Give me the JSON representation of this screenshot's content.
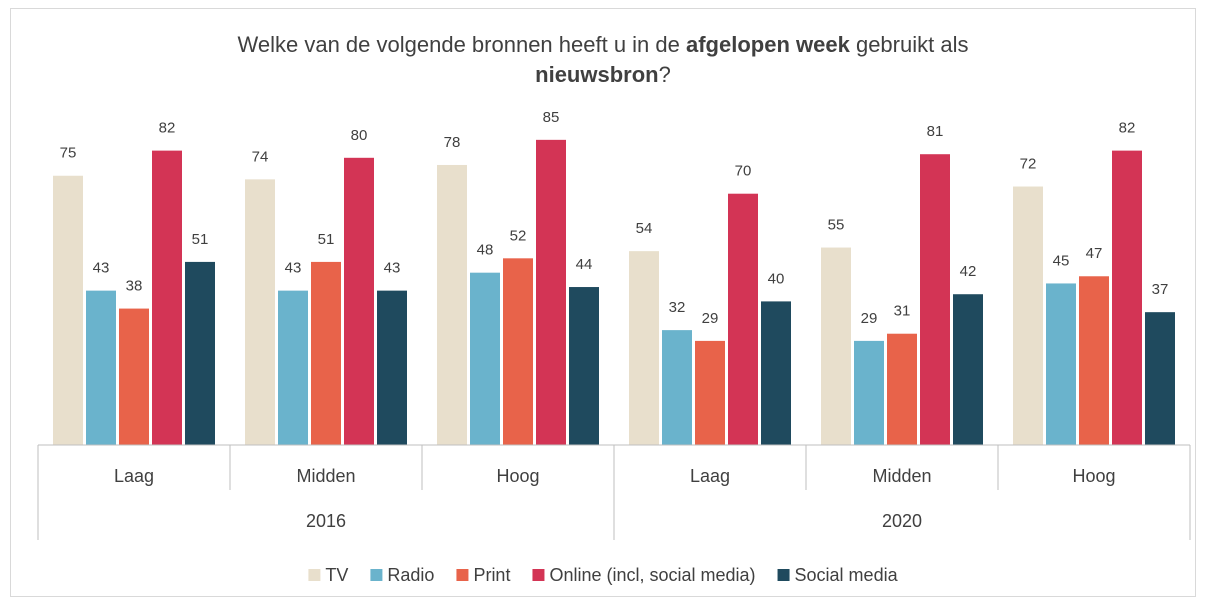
{
  "chart_data": {
    "type": "bar",
    "title": [
      "Welke van de volgende bronnen heeft u in de ",
      "afgelopen week",
      " gebruikt als ",
      "nieuwsbron",
      "?"
    ],
    "categories": [
      "Laag",
      "Midden",
      "Hoog",
      "Laag",
      "Midden",
      "Hoog"
    ],
    "category_groups": [
      "2016",
      "2020"
    ],
    "ylim": [
      0,
      100
    ],
    "series": [
      {
        "name": "TV",
        "color": "#e8dfcc",
        "values": [
          75,
          74,
          78,
          54,
          55,
          72
        ]
      },
      {
        "name": "Radio",
        "color": "#6ab3cc",
        "values": [
          43,
          43,
          48,
          32,
          29,
          45
        ]
      },
      {
        "name": "Print",
        "color": "#e8634a",
        "values": [
          38,
          51,
          52,
          29,
          31,
          47
        ]
      },
      {
        "name": "Online (incl, social media)",
        "color": "#d33455",
        "values": [
          82,
          80,
          85,
          70,
          81,
          82
        ]
      },
      {
        "name": "Social media",
        "color": "#1f4a5e",
        "values": [
          51,
          43,
          44,
          40,
          42,
          37
        ]
      }
    ],
    "legend": "bottom"
  }
}
